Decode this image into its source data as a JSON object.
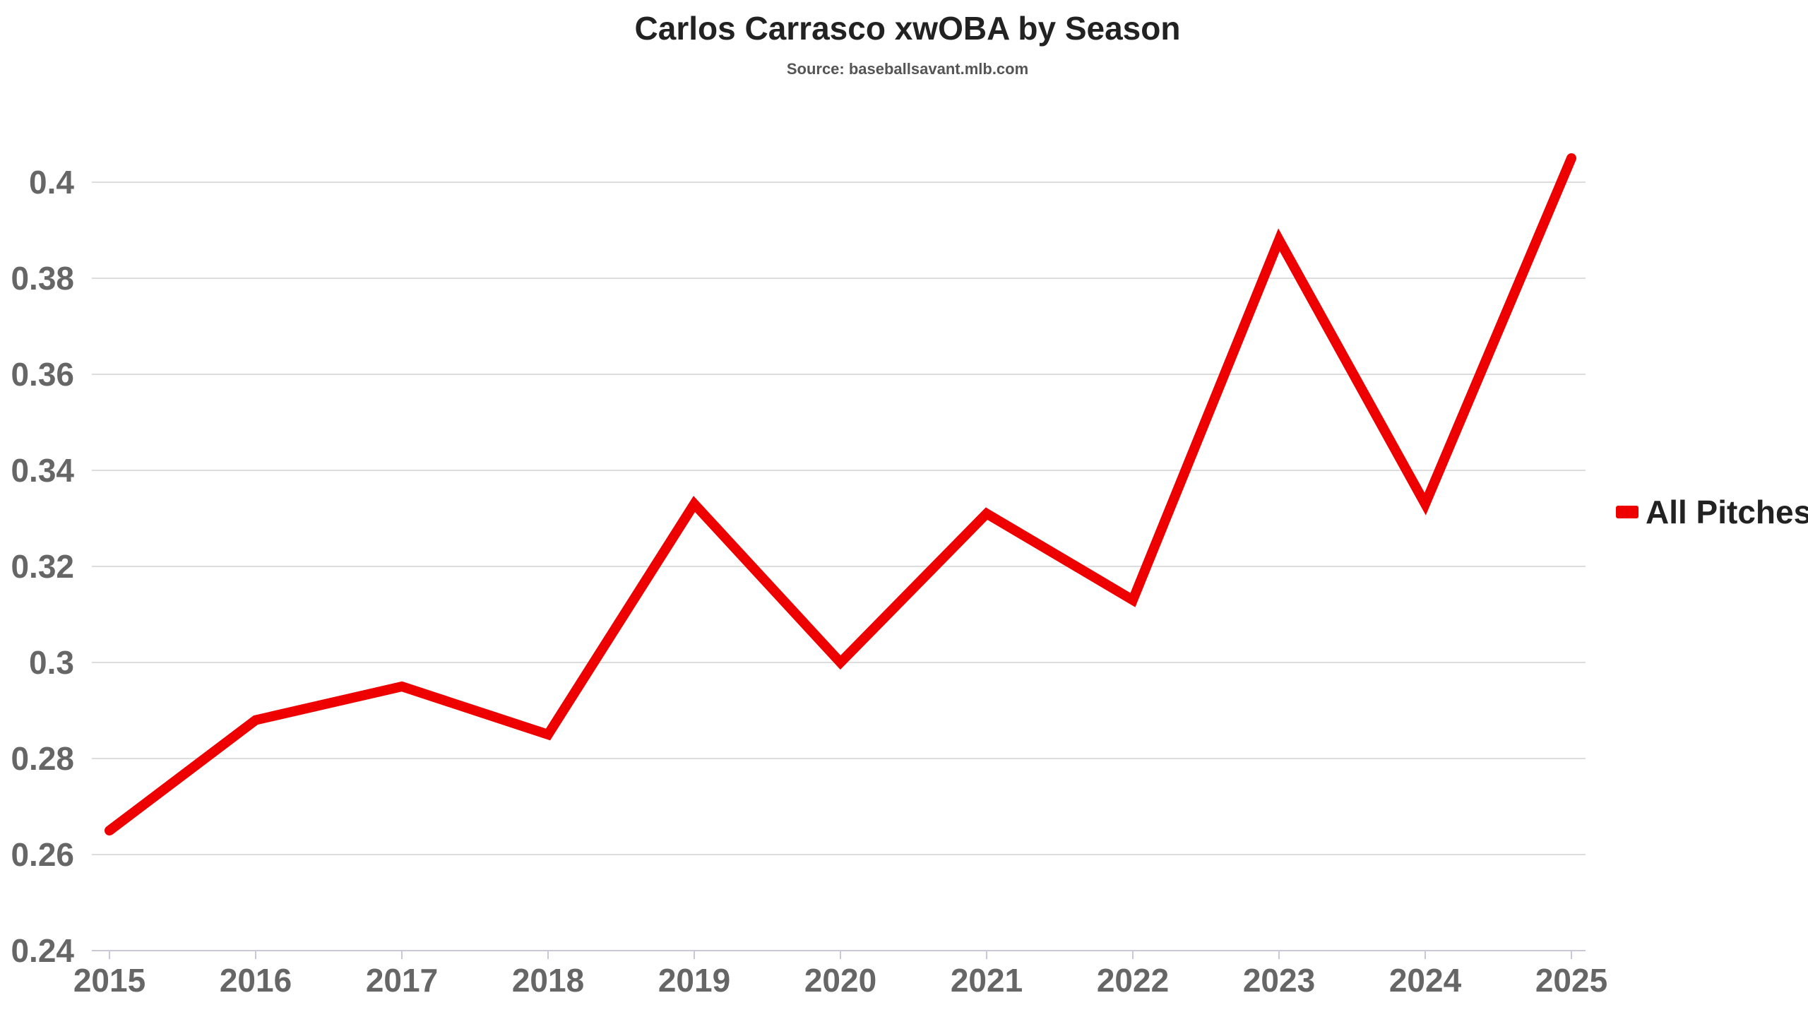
{
  "chart_data": {
    "type": "line",
    "title": "Carlos Carrasco xwOBA by Season",
    "subtitle": "Source: baseballsavant.mlb.com",
    "x": [
      2015,
      2016,
      2017,
      2018,
      2019,
      2020,
      2021,
      2022,
      2023,
      2024,
      2025
    ],
    "x_tick_labels": [
      "2015",
      "2016",
      "2017",
      "2018",
      "2019",
      "2020",
      "2021",
      "2022",
      "2023",
      "2024",
      "2025"
    ],
    "y_tick_values": [
      0.24,
      0.26,
      0.28,
      0.3,
      0.32,
      0.34,
      0.36,
      0.38,
      0.4
    ],
    "y_tick_labels": [
      "0.24",
      "0.26",
      "0.28",
      "0.3",
      "0.32",
      "0.34",
      "0.36",
      "0.38",
      "0.4"
    ],
    "ylim": [
      0.24,
      0.41
    ],
    "xlabel": "",
    "ylabel": "",
    "grid": true,
    "legend_position": "right",
    "series": [
      {
        "name": "All Pitches",
        "color": "#ee0000",
        "values": [
          0.265,
          0.288,
          0.295,
          0.285,
          0.333,
          0.3,
          0.331,
          0.313,
          0.388,
          0.333,
          0.405
        ]
      }
    ]
  }
}
